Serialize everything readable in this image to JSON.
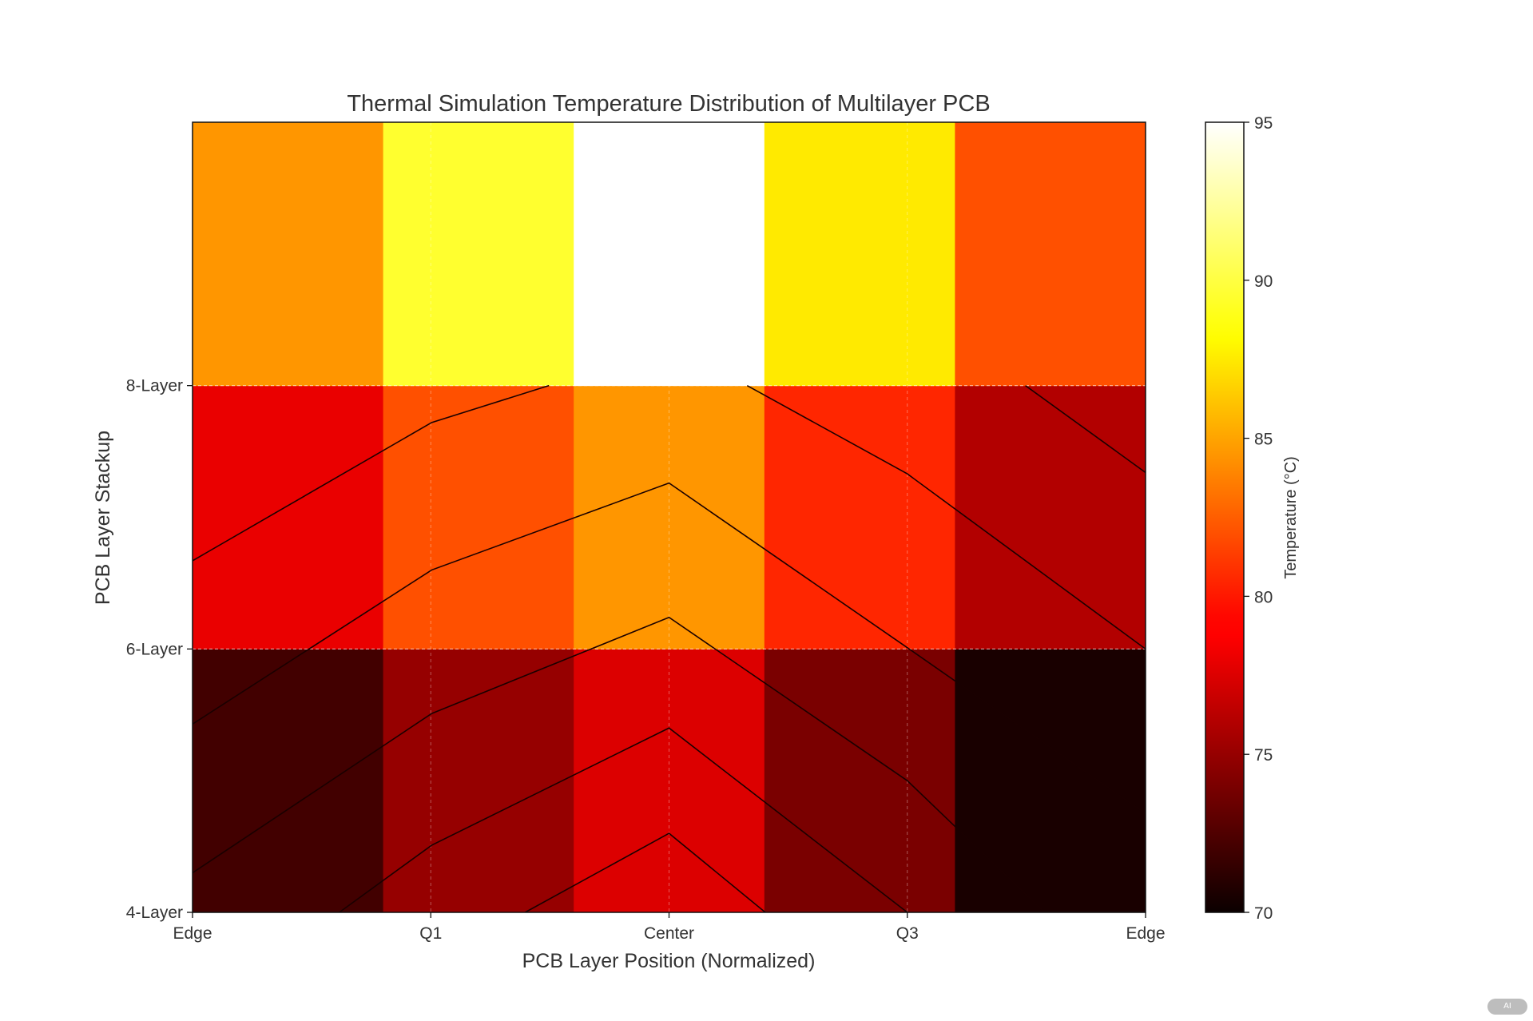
{
  "chart_data": {
    "type": "heatmap",
    "title": "Thermal Simulation Temperature Distribution of Multilayer PCB",
    "xlabel": "PCB Layer Position (Normalized)",
    "ylabel": "PCB Layer Stackup",
    "x_ticks": [
      {
        "value": 0,
        "label": "Edge"
      },
      {
        "value": 0.25,
        "label": "Q1"
      },
      {
        "value": 0.5,
        "label": "Center"
      },
      {
        "value": 0.75,
        "label": "Q3"
      },
      {
        "value": 1,
        "label": "Edge"
      }
    ],
    "y_ticks": [
      {
        "value": 4,
        "label": "4-Layer"
      },
      {
        "value": 6,
        "label": "6-Layer"
      },
      {
        "value": 8,
        "label": "8-Layer"
      }
    ],
    "xlim": [
      0,
      1
    ],
    "ylim": [
      4,
      10
    ],
    "colormap": "hot",
    "colorbar": {
      "label": "Temperature (°C)",
      "range": [
        70,
        95
      ],
      "ticks": [
        "70",
        "75",
        "80",
        "85",
        "90",
        "95"
      ]
    },
    "rows_bottom_to_top": [
      [
        72,
        75,
        77.5,
        74,
        70.5
      ],
      [
        78,
        82,
        84.5,
        80.5,
        76
      ],
      [
        84.5,
        89.5,
        95,
        87.5,
        82
      ]
    ],
    "contours": [
      [
        [
          0,
          6.67
        ],
        [
          0.251,
          7.72
        ],
        [
          0.374,
          8.0
        ]
      ],
      [
        [
          0.582,
          8.0
        ],
        [
          0.75,
          7.33
        ],
        [
          1.0,
          6.0
        ]
      ],
      [
        [
          0.874,
          8.0
        ],
        [
          1.0,
          7.34
        ]
      ],
      [
        [
          0,
          5.43
        ],
        [
          0.251,
          6.6
        ],
        [
          0.5,
          7.26
        ],
        [
          0.75,
          6.01
        ],
        [
          1.0,
          4.75
        ]
      ],
      [
        [
          0,
          4.3
        ],
        [
          0.251,
          5.51
        ],
        [
          0.5,
          6.24
        ],
        [
          0.75,
          5.0
        ],
        [
          0.894,
          4.0
        ]
      ],
      [
        [
          0.154,
          4.0
        ],
        [
          0.251,
          4.51
        ],
        [
          0.5,
          5.4
        ],
        [
          0.75,
          4.0
        ]
      ],
      [
        [
          0.349,
          4.0
        ],
        [
          0.5,
          4.6
        ],
        [
          0.601,
          4.0
        ]
      ]
    ],
    "grid": true
  },
  "badge": "AI"
}
